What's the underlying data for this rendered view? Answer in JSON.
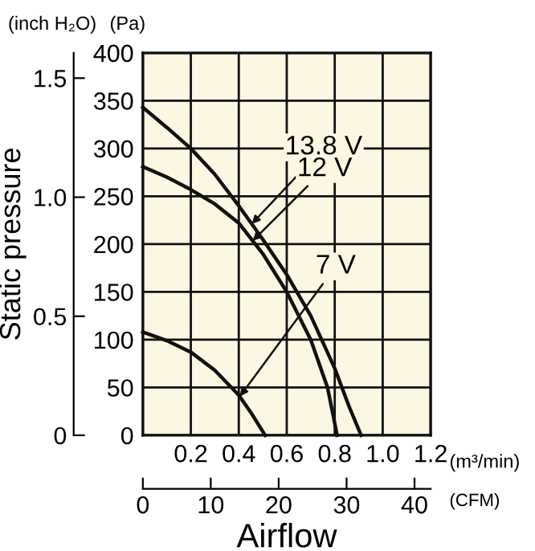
{
  "chart_data": {
    "type": "line",
    "xlabel": "Airflow",
    "ylabel": "Static pressure",
    "x2label": "(CFM)",
    "annotations": [
      "(inch H₂O)",
      "(Pa)",
      "(m³/min)"
    ],
    "series": [
      {
        "name": "13.8 V",
        "color": "#111111",
        "axis": "y2",
        "x": [
          0,
          0.1,
          0.2,
          0.3,
          0.4,
          0.5,
          0.6,
          0.7,
          0.8,
          0.86,
          0.91
        ],
        "values": [
          343,
          322,
          300,
          273,
          240,
          205,
          168,
          125,
          70,
          30,
          0
        ]
      },
      {
        "name": "12 V",
        "color": "#111111",
        "axis": "y2",
        "x": [
          0,
          0.1,
          0.2,
          0.3,
          0.4,
          0.5,
          0.6,
          0.7,
          0.77,
          0.81
        ],
        "values": [
          281,
          270,
          257,
          242,
          222,
          190,
          150,
          100,
          50,
          0
        ]
      },
      {
        "name": "7 V",
        "color": "#111111",
        "axis": "y2",
        "x": [
          0,
          0.1,
          0.2,
          0.3,
          0.4,
          0.45,
          0.51
        ],
        "values": [
          108,
          99,
          87,
          68,
          42,
          24,
          0
        ]
      }
    ],
    "xlim": [
      0,
      1.2
    ],
    "xticks": [
      {
        "value": 0,
        "label": null
      },
      {
        "value": 0.2,
        "label": "0.2"
      },
      {
        "value": 0.4,
        "label": "0.4"
      },
      {
        "value": 0.6,
        "label": "0.6"
      },
      {
        "value": 0.8,
        "label": "0.8"
      },
      {
        "value": 1.0,
        "label": "1.0"
      },
      {
        "value": 1.2,
        "label": "1.2"
      }
    ],
    "ylim": [
      0,
      1.606
    ],
    "yticks": [
      0,
      0.5,
      {
        "value": 1.0,
        "label": "1.0"
      },
      1.5
    ],
    "y2lim": [
      0,
      400
    ],
    "y2ticks": [
      0,
      50,
      100,
      150,
      200,
      250,
      300,
      350,
      400
    ],
    "x2lim": [
      0,
      42.38
    ],
    "x2ticks": [
      0,
      10,
      20,
      30,
      40
    ],
    "grid": true,
    "legend": false,
    "marker": "none",
    "line_style": "solid"
  }
}
